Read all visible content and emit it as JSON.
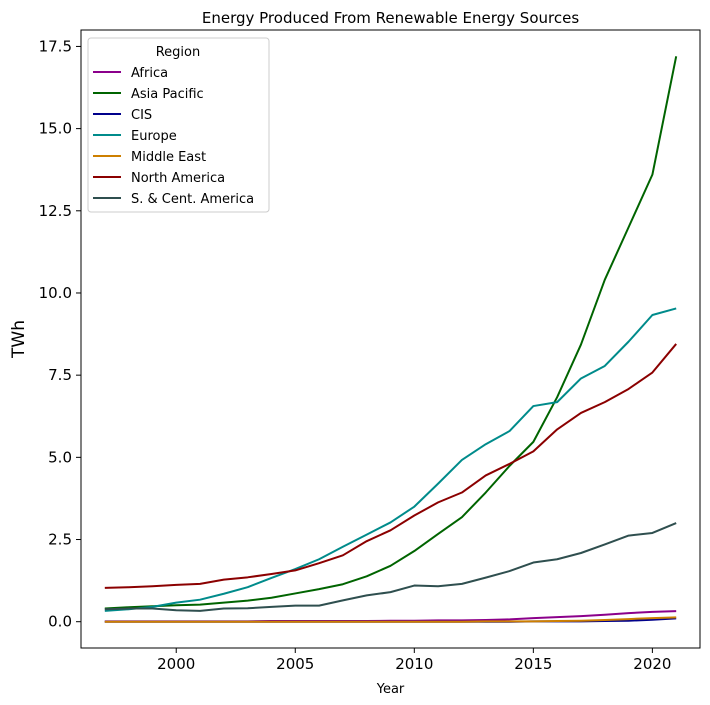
{
  "chart_data": {
    "type": "line",
    "title": "Energy Produced From Renewable Energy Sources",
    "xlabel": "Year",
    "ylabel": "TWh",
    "xlim": [
      1996,
      2022
    ],
    "ylim": [
      -0.8,
      18.0
    ],
    "xticks": [
      2000,
      2005,
      2010,
      2015,
      2020
    ],
    "xtick_labels": [
      "2000",
      "2005",
      "2010",
      "2015",
      "2020"
    ],
    "yticks": [
      0.0,
      2.5,
      5.0,
      7.5,
      10.0,
      12.5,
      15.0,
      17.5
    ],
    "ytick_labels": [
      "0.0",
      "2.5",
      "5.0",
      "7.5",
      "10.0",
      "12.5",
      "15.0",
      "17.5"
    ],
    "legend": {
      "title": "Region",
      "position": "top-left"
    },
    "x": [
      1997,
      1998,
      1999,
      2000,
      2001,
      2002,
      2003,
      2004,
      2005,
      2006,
      2007,
      2008,
      2009,
      2010,
      2011,
      2012,
      2013,
      2014,
      2015,
      2016,
      2017,
      2018,
      2019,
      2020,
      2021
    ],
    "series": [
      {
        "name": "Africa",
        "color": "#8b008b",
        "values": [
          0.01,
          0.01,
          0.01,
          0.01,
          0.01,
          0.01,
          0.01,
          0.02,
          0.02,
          0.02,
          0.02,
          0.02,
          0.03,
          0.03,
          0.04,
          0.04,
          0.05,
          0.07,
          0.11,
          0.14,
          0.17,
          0.21,
          0.26,
          0.3,
          0.32
        ]
      },
      {
        "name": "Asia Pacific",
        "color": "#006400",
        "values": [
          0.4,
          0.44,
          0.47,
          0.5,
          0.52,
          0.58,
          0.64,
          0.73,
          0.86,
          0.99,
          1.14,
          1.38,
          1.7,
          2.15,
          2.67,
          3.18,
          3.93,
          4.74,
          5.47,
          6.83,
          8.43,
          10.4,
          12.0,
          13.6,
          17.2
        ]
      },
      {
        "name": "CIS",
        "color": "#00008b",
        "values": [
          0.0,
          0.0,
          0.0,
          0.0,
          0.0,
          0.0,
          0.0,
          0.0,
          0.0,
          0.0,
          0.0,
          0.0,
          0.0,
          0.0,
          0.0,
          0.0,
          0.0,
          0.0,
          0.01,
          0.01,
          0.01,
          0.02,
          0.03,
          0.06,
          0.1
        ]
      },
      {
        "name": "Europe",
        "color": "#008b8b",
        "values": [
          0.33,
          0.38,
          0.45,
          0.58,
          0.67,
          0.85,
          1.05,
          1.33,
          1.6,
          1.9,
          2.28,
          2.65,
          3.02,
          3.5,
          4.2,
          4.92,
          5.4,
          5.8,
          6.56,
          6.68,
          7.4,
          7.78,
          8.52,
          9.33,
          9.53
        ]
      },
      {
        "name": "Middle East",
        "color": "#cd7f00",
        "values": [
          0.0,
          0.0,
          0.0,
          0.0,
          0.0,
          0.0,
          0.0,
          0.0,
          0.0,
          0.0,
          0.0,
          0.0,
          0.0,
          0.0,
          0.0,
          0.0,
          0.01,
          0.01,
          0.01,
          0.02,
          0.03,
          0.05,
          0.08,
          0.11,
          0.13
        ]
      },
      {
        "name": "North America",
        "color": "#8b0000",
        "values": [
          1.03,
          1.05,
          1.08,
          1.12,
          1.15,
          1.28,
          1.35,
          1.45,
          1.56,
          1.78,
          2.02,
          2.45,
          2.78,
          3.23,
          3.63,
          3.93,
          4.45,
          4.8,
          5.18,
          5.85,
          6.35,
          6.68,
          7.08,
          7.58,
          8.45
        ]
      },
      {
        "name": "S. & Cent. America",
        "color": "#2f4f4f",
        "values": [
          0.38,
          0.4,
          0.4,
          0.35,
          0.33,
          0.4,
          0.41,
          0.45,
          0.49,
          0.49,
          0.65,
          0.8,
          0.9,
          1.1,
          1.08,
          1.15,
          1.34,
          1.54,
          1.8,
          1.9,
          2.09,
          2.35,
          2.62,
          2.7,
          3.0
        ]
      }
    ]
  }
}
